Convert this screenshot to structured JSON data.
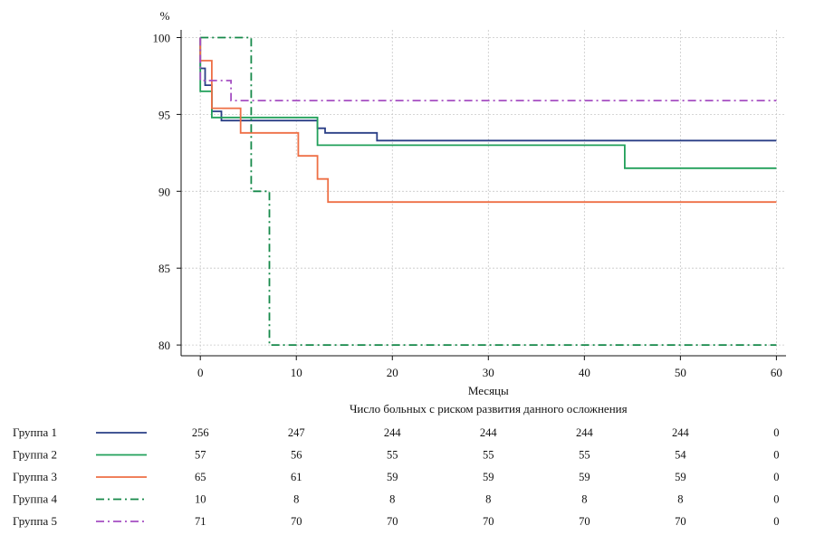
{
  "chart_data": {
    "type": "line",
    "subtype": "kaplan-meier step curves",
    "ylabel": "%",
    "xlabel": "Месяцы",
    "xlim": [
      -2,
      61
    ],
    "ylim": [
      79.3,
      100.5
    ],
    "xticks": [
      0,
      10,
      20,
      30,
      40,
      50,
      60
    ],
    "yticks": [
      80,
      85,
      90,
      95,
      100
    ],
    "grid": true,
    "series": [
      {
        "name": "Группа 1",
        "color": "#2a3f86",
        "dash": "solid",
        "points": [
          [
            0,
            100
          ],
          [
            0,
            98.0
          ],
          [
            0.5,
            98.0
          ],
          [
            0.5,
            96.9
          ],
          [
            1.2,
            96.9
          ],
          [
            1.2,
            95.2
          ],
          [
            2.2,
            95.2
          ],
          [
            2.2,
            94.6
          ],
          [
            12.2,
            94.6
          ],
          [
            12.2,
            94.1
          ],
          [
            13,
            94.1
          ],
          [
            13,
            93.8
          ],
          [
            18.4,
            93.8
          ],
          [
            18.4,
            93.3
          ],
          [
            60,
            93.3
          ]
        ]
      },
      {
        "name": "Группа 2",
        "color": "#21a05a",
        "dash": "solid",
        "points": [
          [
            0,
            100
          ],
          [
            0,
            96.5
          ],
          [
            1.2,
            96.5
          ],
          [
            1.2,
            94.8
          ],
          [
            12.2,
            94.8
          ],
          [
            12.2,
            93.0
          ],
          [
            44.2,
            93.0
          ],
          [
            44.2,
            91.5
          ],
          [
            60,
            91.5
          ]
        ]
      },
      {
        "name": "Группа 3",
        "color": "#ee6f45",
        "dash": "solid",
        "points": [
          [
            0,
            100
          ],
          [
            0,
            98.5
          ],
          [
            1.2,
            98.5
          ],
          [
            1.2,
            95.4
          ],
          [
            4.2,
            95.4
          ],
          [
            4.2,
            93.8
          ],
          [
            10.2,
            93.8
          ],
          [
            10.2,
            92.3
          ],
          [
            12.2,
            92.3
          ],
          [
            12.2,
            90.8
          ],
          [
            13.3,
            90.8
          ],
          [
            13.3,
            89.3
          ],
          [
            60,
            89.3
          ]
        ]
      },
      {
        "name": "Группа 4",
        "color": "#16894a",
        "dash": "dashdot",
        "points": [
          [
            0,
            100
          ],
          [
            5.3,
            100
          ],
          [
            5.3,
            90.0
          ],
          [
            7.2,
            90.0
          ],
          [
            7.2,
            80.0
          ],
          [
            60,
            80.0
          ]
        ]
      },
      {
        "name": "Группа 5",
        "color": "#a54fc2",
        "dash": "dashdot",
        "points": [
          [
            0,
            100
          ],
          [
            0,
            97.2
          ],
          [
            3.2,
            97.2
          ],
          [
            3.2,
            95.9
          ],
          [
            60,
            95.9
          ]
        ]
      }
    ],
    "risk_table": {
      "title": "Число больных с риском развития данного осложнения",
      "times": [
        0,
        10,
        20,
        30,
        40,
        50,
        60
      ],
      "rows": [
        {
          "label": "Группа 1",
          "values": [
            "256",
            "247",
            "244",
            "244",
            "244",
            "244",
            "0"
          ]
        },
        {
          "label": "Группа 2",
          "values": [
            "57",
            "56",
            "55",
            "55",
            "55",
            "54",
            "0"
          ]
        },
        {
          "label": "Группа 3",
          "values": [
            "65",
            "61",
            "59",
            "59",
            "59",
            "59",
            "0"
          ]
        },
        {
          "label": "Группа 4",
          "values": [
            "10",
            "8",
            "8",
            "8",
            "8",
            "8",
            "0"
          ]
        },
        {
          "label": "Группа 5",
          "values": [
            "71",
            "70",
            "70",
            "70",
            "70",
            "70",
            "0"
          ]
        }
      ]
    }
  }
}
